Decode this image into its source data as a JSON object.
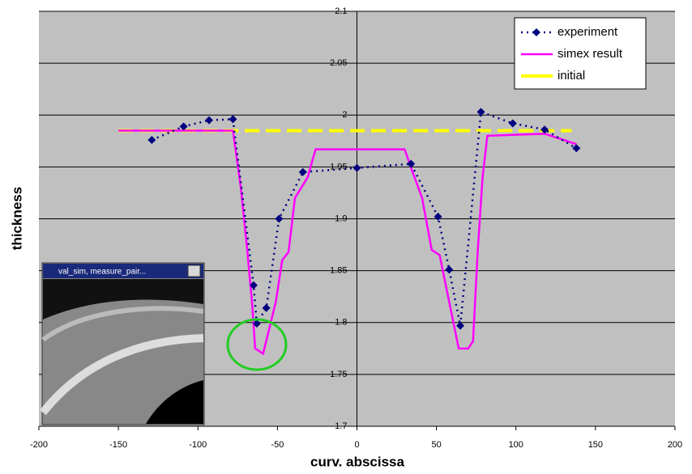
{
  "chart_data": {
    "type": "line",
    "x_label": "curv. abscissa",
    "y_label": "thickness",
    "xlim": [
      -200,
      200
    ],
    "xticks": [
      -200,
      -150,
      -100,
      -50,
      0,
      50,
      100,
      150,
      200
    ],
    "ylim": [
      1.7,
      2.1
    ],
    "yticks": [
      1.7,
      1.75,
      1.8,
      1.85,
      1.9,
      1.95,
      2,
      2.05,
      2.1
    ],
    "grid": true,
    "legend": "upper right",
    "series": [
      {
        "name": "experiment",
        "color": "#000080",
        "style": "dotted-markers",
        "x": [
          -129,
          -109,
          -93,
          -78,
          -65,
          -63,
          -57,
          -49,
          -34,
          0,
          34,
          51,
          58,
          65,
          78,
          98,
          118,
          138
        ],
        "values": [
          1.976,
          1.989,
          1.995,
          1.996,
          1.836,
          1.799,
          1.814,
          1.9,
          1.945,
          1.949,
          1.953,
          1.902,
          1.851,
          1.797,
          2.003,
          1.992,
          1.986,
          1.968
        ]
      },
      {
        "name": "simex result",
        "color": "#ff00ff",
        "style": "solid",
        "x": [
          -150,
          -78,
          -73,
          -69,
          -66,
          -64,
          -59,
          -51,
          -47,
          -43,
          -39,
          -31,
          -26,
          0,
          30,
          35,
          41,
          47,
          52,
          58,
          64,
          70,
          73,
          76,
          79,
          82,
          118,
          138
        ],
        "values": [
          1.985,
          1.985,
          1.93,
          1.87,
          1.82,
          1.775,
          1.77,
          1.82,
          1.86,
          1.868,
          1.92,
          1.94,
          1.967,
          1.967,
          1.967,
          1.945,
          1.92,
          1.87,
          1.865,
          1.82,
          1.775,
          1.775,
          1.782,
          1.87,
          1.94,
          1.98,
          1.982,
          1.972
        ]
      },
      {
        "name": "initial",
        "color": "#ffff00",
        "style": "dashed",
        "x": [
          -150,
          135
        ],
        "values": [
          1.985,
          1.985
        ]
      }
    ]
  },
  "inset": {
    "title": "val_sim, measure_pair..."
  }
}
